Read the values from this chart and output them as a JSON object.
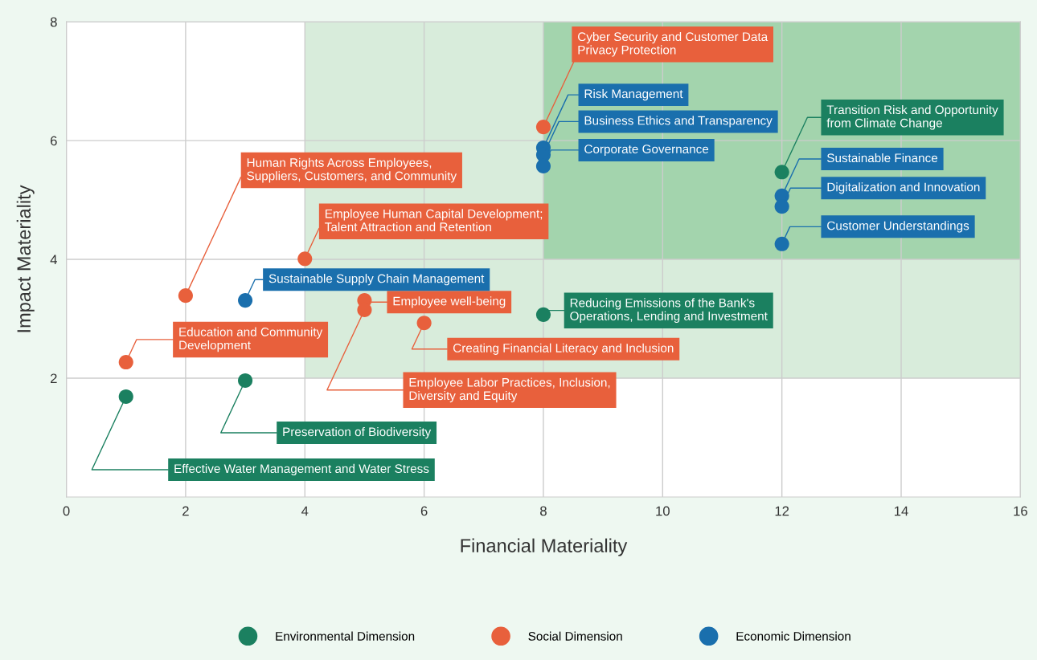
{
  "chart_data": {
    "type": "scatter",
    "xlabel": "Financial Materiality",
    "ylabel": "Impact Materiality",
    "xlim": [
      0,
      16
    ],
    "ylim": [
      0,
      8
    ],
    "xticks": [
      0,
      2,
      4,
      6,
      8,
      10,
      12,
      14,
      16
    ],
    "yticks": [
      2,
      4,
      6,
      8
    ],
    "grid": true,
    "legend": "bottom",
    "marker": "circle",
    "series": [
      {
        "name": "Environmental Dimension",
        "color": "#1b8060",
        "x": [
          1,
          3,
          8,
          12
        ],
        "values": [
          1.69,
          1.96,
          3.07,
          5.47
        ]
      },
      {
        "name": "Social Dimension",
        "color": "#e8603c",
        "x": [
          1,
          2,
          4,
          5,
          5,
          6,
          8
        ],
        "values": [
          2.27,
          3.39,
          4.01,
          3.31,
          3.15,
          2.93,
          6.23
        ]
      },
      {
        "name": "Economic Dimension",
        "color": "#1a6fad",
        "x": [
          3,
          8,
          8,
          8,
          12,
          12,
          12
        ],
        "values": [
          3.31,
          5.88,
          5.76,
          5.57,
          5.07,
          4.89,
          4.26
        ]
      }
    ],
    "annotations": [
      {
        "text": "Effective Water Management and Water Stress",
        "x": 1,
        "y": 1.69
      },
      {
        "text": "Preservation of Biodiversity",
        "x": 3,
        "y": 1.96
      },
      {
        "text": "Reducing Emissions of the Bank's\nOperations, Lending and Investment",
        "x": 8,
        "y": 3.07
      },
      {
        "text": "Transition Risk and Opportunity\nfrom Climate Change",
        "x": 12,
        "y": 5.47
      },
      {
        "text": "Education and Community\nDevelopment",
        "x": 1,
        "y": 2.27
      },
      {
        "text": "Human Rights Across Employees,\nSuppliers, Customers, and Community",
        "x": 2,
        "y": 3.39
      },
      {
        "text": "Employee Human Capital Development;\nTalent Attraction and Retention",
        "x": 4,
        "y": 4.01
      },
      {
        "text": "Employee well-being",
        "x": 5,
        "y": 3.31
      },
      {
        "text": "Employee Labor Practices, Inclusion,\nDiversity and Equity",
        "x": 5,
        "y": 3.15
      },
      {
        "text": "Creating Financial Literacy and Inclusion",
        "x": 6,
        "y": 2.93
      },
      {
        "text": "Cyber Security and Customer Data\nPrivacy Protection",
        "x": 8,
        "y": 6.23
      },
      {
        "text": "Sustainable Supply Chain Management",
        "x": 3,
        "y": 3.31
      },
      {
        "text": "Risk Management",
        "x": 8,
        "y": 5.88
      },
      {
        "text": "Business Ethics and Transparency",
        "x": 8,
        "y": 5.76
      },
      {
        "text": "Corporate Governance",
        "x": 8,
        "y": 5.57
      },
      {
        "text": "Sustainable Finance",
        "x": 12,
        "y": 5.07
      },
      {
        "text": "Digitalization and Innovation",
        "x": 12,
        "y": 4.89
      },
      {
        "text": "Customer Understandings",
        "x": 12,
        "y": 4.26
      }
    ]
  }
}
